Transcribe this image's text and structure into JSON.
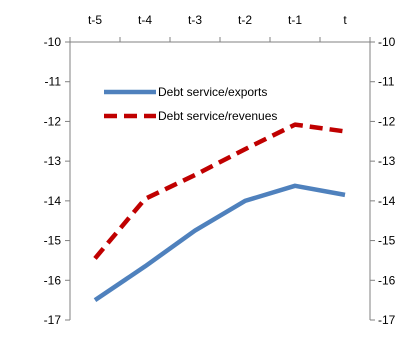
{
  "chart_data": {
    "type": "line",
    "categories": [
      "t-5",
      "t-4",
      "t-3",
      "t-2",
      "t-1",
      "t"
    ],
    "series": [
      {
        "name": "Debt service/exports",
        "values": [
          -16.5,
          -15.65,
          -14.75,
          -14.0,
          -13.62,
          -13.85
        ],
        "color": "#4f81bd",
        "style": "solid"
      },
      {
        "name": "Debt service/revenues",
        "values": [
          -15.45,
          -13.95,
          -13.35,
          -12.7,
          -12.08,
          -12.25
        ],
        "color": "#c00000",
        "style": "dashed"
      }
    ],
    "yticks": [
      "-10",
      "-11",
      "-12",
      "-13",
      "-14",
      "-15",
      "-16",
      "-17"
    ],
    "ylim": [
      -17,
      -10
    ],
    "xaxis_position": "top",
    "secondary_y_axis": true,
    "legend_position": "upper-center",
    "grid": false
  }
}
